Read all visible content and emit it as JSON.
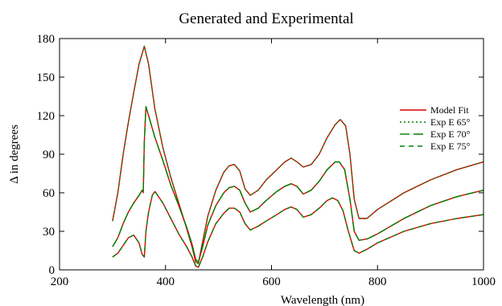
{
  "chart_data": {
    "type": "line",
    "title": "Generated and Experimental",
    "xlabel": "Wavelength (nm)",
    "ylabel": "Δ in degrees",
    "xlim": [
      200,
      1000
    ],
    "ylim": [
      0,
      180
    ],
    "xticks": [
      200,
      400,
      600,
      800,
      1000
    ],
    "yticks": [
      0,
      30,
      60,
      90,
      120,
      150,
      180
    ],
    "grid": false,
    "legend_position": "top-right",
    "colors": {
      "model_fit": "#e00000",
      "experimental": "#008000",
      "axis": "#000000"
    },
    "legend": [
      {
        "label": "Model Fit",
        "color": "#e00000",
        "dash": "solid"
      },
      {
        "label": "Exp E 65°",
        "color": "#008000",
        "dash": "dot"
      },
      {
        "label": "Exp E 70°",
        "color": "#008000",
        "dash": "longdash"
      },
      {
        "label": "Exp E 75°",
        "color": "#008000",
        "dash": "dash"
      }
    ],
    "series": [
      {
        "angle": "65°",
        "dash": "dot",
        "points": [
          [
            300,
            38
          ],
          [
            310,
            60
          ],
          [
            320,
            90
          ],
          [
            330,
            115
          ],
          [
            340,
            138
          ],
          [
            350,
            160
          ],
          [
            360,
            174
          ],
          [
            368,
            160
          ],
          [
            380,
            125
          ],
          [
            395,
            95
          ],
          [
            410,
            72
          ],
          [
            425,
            52
          ],
          [
            440,
            32
          ],
          [
            450,
            18
          ],
          [
            457,
            6
          ],
          [
            462,
            5
          ],
          [
            470,
            22
          ],
          [
            480,
            42
          ],
          [
            495,
            62
          ],
          [
            510,
            76
          ],
          [
            520,
            81
          ],
          [
            530,
            82
          ],
          [
            540,
            77
          ],
          [
            550,
            63
          ],
          [
            560,
            58
          ],
          [
            575,
            62
          ],
          [
            590,
            70
          ],
          [
            610,
            78
          ],
          [
            625,
            84
          ],
          [
            637,
            87
          ],
          [
            648,
            84
          ],
          [
            660,
            80
          ],
          [
            675,
            82
          ],
          [
            690,
            90
          ],
          [
            705,
            103
          ],
          [
            720,
            113
          ],
          [
            730,
            117
          ],
          [
            740,
            112
          ],
          [
            748,
            90
          ],
          [
            756,
            55
          ],
          [
            765,
            40
          ],
          [
            780,
            40
          ],
          [
            800,
            47
          ],
          [
            850,
            60
          ],
          [
            900,
            70
          ],
          [
            950,
            78
          ],
          [
            1000,
            84
          ]
        ]
      },
      {
        "angle": "70°",
        "dash": "longdash",
        "points": [
          [
            300,
            18
          ],
          [
            310,
            25
          ],
          [
            320,
            36
          ],
          [
            330,
            45
          ],
          [
            340,
            52
          ],
          [
            350,
            58
          ],
          [
            356,
            62
          ],
          [
            358,
            60
          ],
          [
            360,
            100
          ],
          [
            363,
            127
          ],
          [
            368,
            120
          ],
          [
            380,
            103
          ],
          [
            395,
            85
          ],
          [
            410,
            66
          ],
          [
            425,
            50
          ],
          [
            440,
            33
          ],
          [
            450,
            20
          ],
          [
            457,
            8
          ],
          [
            462,
            6
          ],
          [
            470,
            18
          ],
          [
            480,
            35
          ],
          [
            495,
            50
          ],
          [
            510,
            60
          ],
          [
            520,
            64
          ],
          [
            530,
            65
          ],
          [
            540,
            62
          ],
          [
            550,
            52
          ],
          [
            560,
            45
          ],
          [
            575,
            48
          ],
          [
            590,
            54
          ],
          [
            610,
            61
          ],
          [
            625,
            65
          ],
          [
            637,
            67
          ],
          [
            648,
            65
          ],
          [
            660,
            59
          ],
          [
            675,
            62
          ],
          [
            690,
            69
          ],
          [
            705,
            78
          ],
          [
            720,
            84
          ],
          [
            728,
            84
          ],
          [
            738,
            78
          ],
          [
            748,
            55
          ],
          [
            756,
            30
          ],
          [
            765,
            23
          ],
          [
            780,
            24
          ],
          [
            800,
            28
          ],
          [
            850,
            40
          ],
          [
            900,
            50
          ],
          [
            950,
            57
          ],
          [
            1000,
            62
          ]
        ]
      },
      {
        "angle": "75°",
        "dash": "dash",
        "points": [
          [
            300,
            10
          ],
          [
            310,
            13
          ],
          [
            320,
            19
          ],
          [
            330,
            25
          ],
          [
            340,
            27
          ],
          [
            350,
            21
          ],
          [
            356,
            12
          ],
          [
            360,
            10
          ],
          [
            363,
            30
          ],
          [
            368,
            45
          ],
          [
            375,
            58
          ],
          [
            380,
            61
          ],
          [
            395,
            52
          ],
          [
            410,
            40
          ],
          [
            425,
            28
          ],
          [
            440,
            18
          ],
          [
            450,
            10
          ],
          [
            457,
            3
          ],
          [
            462,
            2
          ],
          [
            470,
            10
          ],
          [
            480,
            22
          ],
          [
            495,
            36
          ],
          [
            510,
            44
          ],
          [
            520,
            48
          ],
          [
            530,
            48
          ],
          [
            540,
            45
          ],
          [
            550,
            36
          ],
          [
            560,
            31
          ],
          [
            575,
            34
          ],
          [
            590,
            38
          ],
          [
            610,
            43
          ],
          [
            625,
            47
          ],
          [
            637,
            49
          ],
          [
            648,
            47
          ],
          [
            660,
            41
          ],
          [
            675,
            43
          ],
          [
            690,
            48
          ],
          [
            705,
            54
          ],
          [
            715,
            56
          ],
          [
            725,
            54
          ],
          [
            735,
            46
          ],
          [
            745,
            30
          ],
          [
            756,
            15
          ],
          [
            765,
            13
          ],
          [
            780,
            16
          ],
          [
            800,
            21
          ],
          [
            850,
            30
          ],
          [
            900,
            36
          ],
          [
            950,
            40
          ],
          [
            1000,
            43
          ]
        ]
      }
    ]
  }
}
